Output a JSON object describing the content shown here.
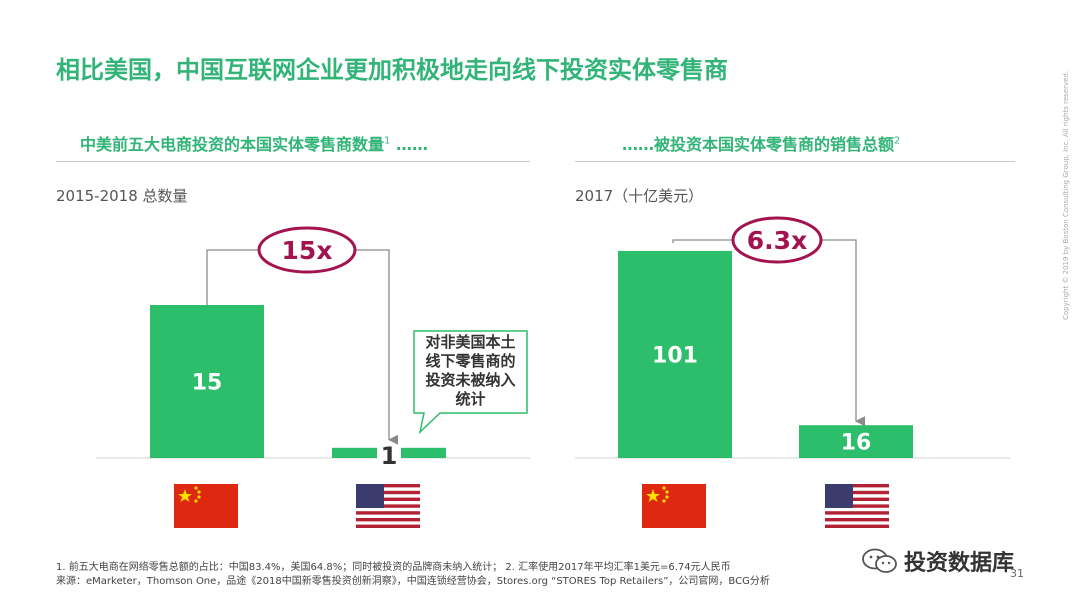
{
  "title": "相比美国，中国互联网企业更加积极地走向线下投资实体零售商",
  "left": {
    "subtitle": "中美前五大电商投资的本国实体零售商数量",
    "subtitle_sup": "1",
    "subtitle_tail": " ……",
    "unit": "2015-2018 总数量"
  },
  "right": {
    "subtitle_head": "……",
    "subtitle": "被投资本国实体零售商的销售总额",
    "subtitle_sup": "2",
    "unit": "2017（十亿美元）"
  },
  "chart_data": [
    {
      "type": "bar",
      "categories": [
        "中国",
        "美国"
      ],
      "values": [
        15,
        1
      ],
      "value_labels": [
        "15",
        "1"
      ],
      "multiplier_label": "15x",
      "callout": "对非美国本土线下零售商的投资未被纳入统计"
    },
    {
      "type": "bar",
      "categories": [
        "中国",
        "美国"
      ],
      "values": [
        101,
        16
      ],
      "value_labels": [
        "101",
        "16"
      ],
      "multiplier_label": "6.3x"
    }
  ],
  "colors": {
    "bar": "#2dbe6c",
    "accent": "#32b478",
    "ring": "#a3134f",
    "arrow": "#8a8a8a"
  },
  "flags": [
    "china-flag",
    "usa-flag"
  ],
  "footnotes": {
    "line1": "1. 前五大电商在网络零售总额的占比：中国83.4%，美国64.8%；同时被投资的品牌商未纳入统计；   2. 汇率使用2017年平均汇率1美元=6.74元人民币",
    "line2": "来源：eMarketer，Thomson One，品途《2018中国新零售投资创新洞察》，中国连锁经营协会，Stores.org “STORES Top Retailers”，公司官网，BCG分析"
  },
  "page_number": "31",
  "copyright": "Copyright © 2019 by Boston Consulting Group, Inc. All rights reserved.",
  "watermark": "投资数据库"
}
